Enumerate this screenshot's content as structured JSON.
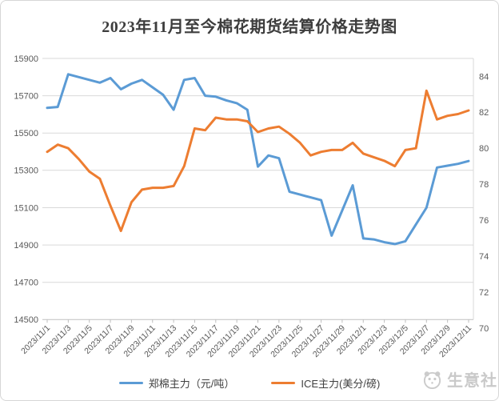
{
  "title": "2023年11月至今棉花期货结算价格走势图",
  "watermark": {
    "brand": "生意社"
  },
  "legend": {
    "items": [
      {
        "label": "郑棉主力（元/吨）",
        "color": "#5b9bd5"
      },
      {
        "label": "ICE主力(美分/磅)",
        "color": "#ed7d31"
      }
    ]
  },
  "colors": {
    "zheng_line": "#5b9bd5",
    "ice_line": "#ed7d31",
    "gridline": "#d9d9d9",
    "axis_line": "#bfbfbf",
    "axis_text": "#595959"
  },
  "chart_data": {
    "type": "line",
    "title": "2023年11月至今棉花期货结算价格走势图",
    "grid": true,
    "legend_position": "bottom",
    "x": [
      "2023/11/1",
      "2023/11/2",
      "2023/11/3",
      "2023/11/4",
      "2023/11/5",
      "2023/11/6",
      "2023/11/7",
      "2023/11/8",
      "2023/11/9",
      "2023/11/10",
      "2023/11/11",
      "2023/11/12",
      "2023/11/13",
      "2023/11/14",
      "2023/11/15",
      "2023/11/16",
      "2023/11/17",
      "2023/11/18",
      "2023/11/19",
      "2023/11/20",
      "2023/11/21",
      "2023/11/22",
      "2023/11/23",
      "2023/11/24",
      "2023/11/25",
      "2023/11/26",
      "2023/11/27",
      "2023/11/28",
      "2023/11/29",
      "2023/11/30",
      "2023/12/1",
      "2023/12/2",
      "2023/12/3",
      "2023/12/4",
      "2023/12/5",
      "2023/12/6",
      "2023/12/7",
      "2023/12/8",
      "2023/12/9",
      "2023/12/10",
      "2023/12/11"
    ],
    "x_tick_labels": [
      "2023/11/1",
      "2023/11/3",
      "2023/11/5",
      "2023/11/7",
      "2023/11/9",
      "2023/11/11",
      "2023/11/13",
      "2023/11/15",
      "2023/11/17",
      "2023/11/19",
      "2023/11/21",
      "2023/11/23",
      "2023/11/25",
      "2023/11/27",
      "2023/11/29",
      "2023/12/1",
      "2023/12/3",
      "2023/12/5",
      "2023/12/7",
      "2023/12/9",
      "2023/12/11"
    ],
    "series": [
      {
        "name": "郑棉主力（元/吨）",
        "axis": "left",
        "color": "#5b9bd5",
        "values": [
          15635,
          15640,
          15815,
          15800,
          15785,
          15770,
          15795,
          15735,
          15765,
          15785,
          15745,
          15705,
          15625,
          15785,
          15795,
          15700,
          15695,
          15675,
          15660,
          15625,
          15320,
          15380,
          15365,
          15185,
          15170,
          15155,
          15140,
          14950,
          15085,
          15220,
          14935,
          14930,
          14915,
          14905,
          14920,
          15010,
          15100,
          15315,
          15325,
          15335,
          15350
        ]
      },
      {
        "name": "ICE主力(美分/磅)",
        "axis": "right",
        "color": "#ed7d31",
        "values": [
          79.8,
          80.2,
          80.0,
          79.4,
          78.7,
          78.3,
          76.8,
          75.4,
          77.0,
          77.7,
          77.8,
          77.8,
          77.9,
          79.0,
          81.1,
          81.0,
          81.7,
          81.6,
          81.6,
          81.5,
          80.9,
          81.1,
          81.2,
          80.8,
          80.3,
          79.6,
          79.8,
          79.9,
          79.9,
          80.3,
          79.7,
          79.5,
          79.3,
          79.0,
          79.9,
          80.0,
          83.2,
          81.6,
          81.8,
          81.9,
          82.1
        ]
      }
    ],
    "left_axis": {
      "label": "",
      "min": 14500,
      "max": 15900,
      "step": 200,
      "ticks": [
        15900,
        15700,
        15500,
        15300,
        15100,
        14900,
        14700,
        14500
      ]
    },
    "right_axis": {
      "label": "",
      "min": 70,
      "max": 84,
      "step": 2,
      "ticks": [
        84,
        82,
        80,
        78,
        76,
        74,
        72,
        70
      ]
    }
  }
}
